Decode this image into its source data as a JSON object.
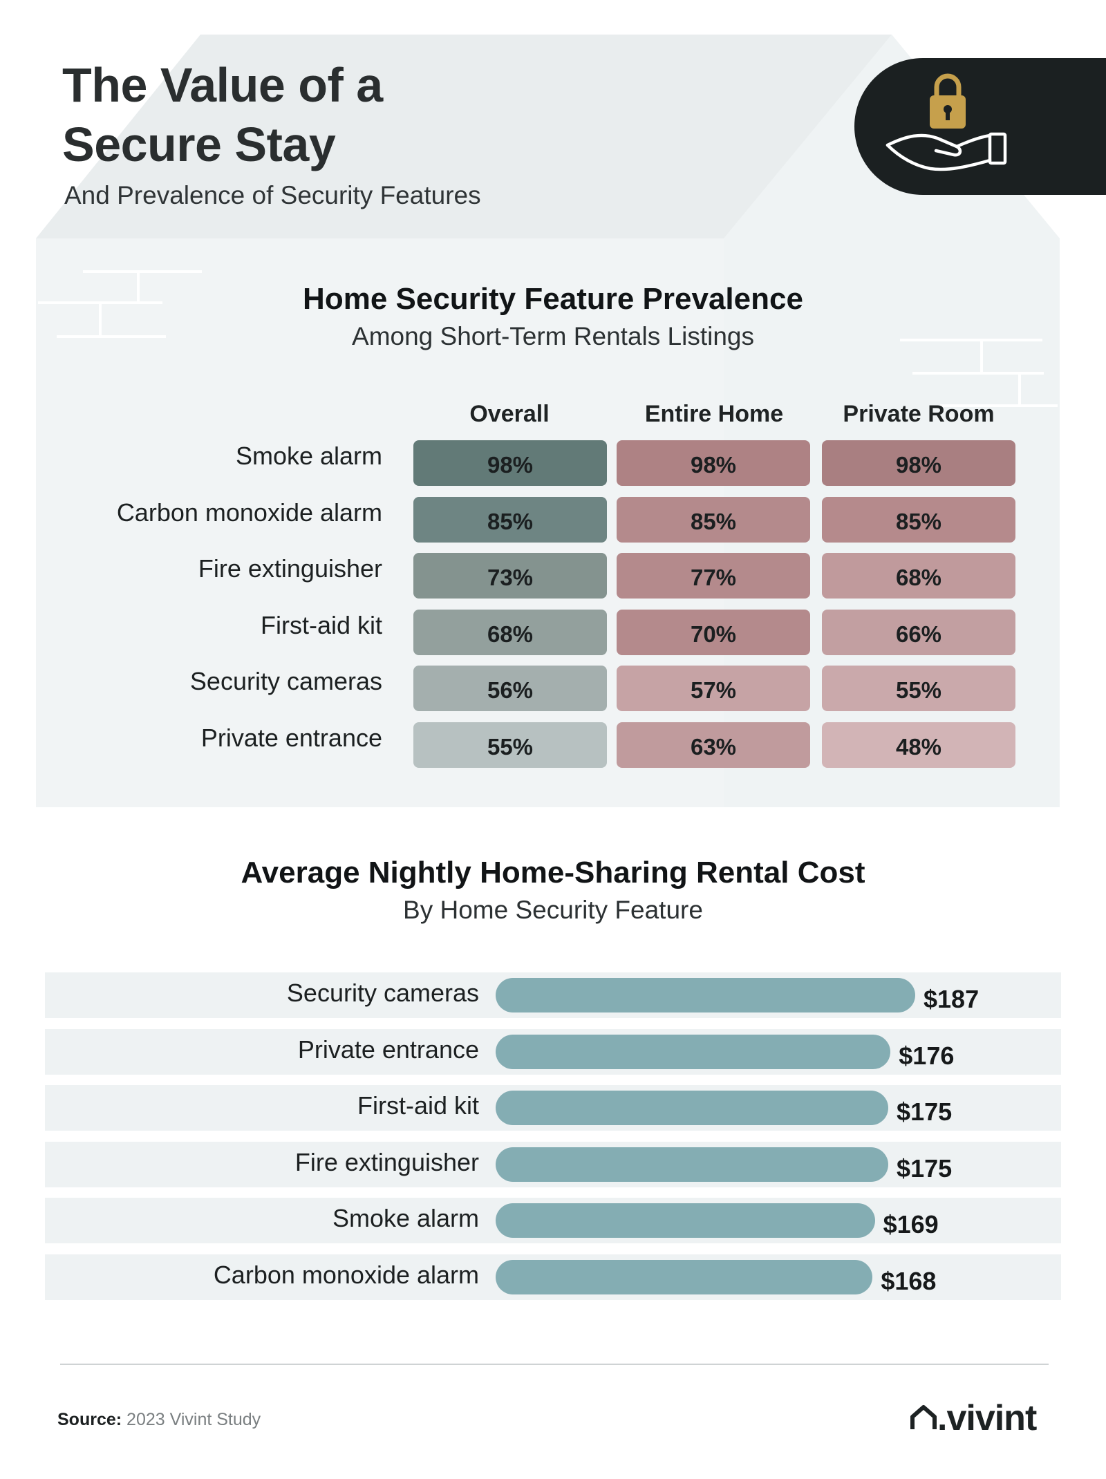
{
  "header": {
    "title": "The Value of a Secure Stay",
    "subtitle": "And Prevalence of Security Features"
  },
  "icons": {
    "lock": "padlock-icon",
    "hand": "open-hand-icon",
    "logo_mark": "house-roof-icon"
  },
  "colors": {
    "overall_scale": [
      "#627a77",
      "#6e8583",
      "#84938f",
      "#93a09d",
      "#a4afae",
      "#b7c1c1"
    ],
    "entire_home_scale": [
      "#ae8284",
      "#b48a8c",
      "#b48a8c",
      "#b48a8c",
      "#c6a3a5",
      "#c09b9d"
    ],
    "private_room_scale": [
      "#a97f81",
      "#b58a8c",
      "#c09a9c",
      "#c29fa1",
      "#caa9ab",
      "#d2b4b6"
    ],
    "bar": "#84adb3",
    "row_bg": "#eef2f3",
    "badge": "#1b2021",
    "lock_gold": "#c6a04c"
  },
  "chart_data": [
    {
      "type": "table",
      "title": "Home Security Feature Prevalence",
      "subtitle": "Among Short-Term Rentals Listings",
      "columns": [
        "Overall",
        "Entire Home",
        "Private Room"
      ],
      "rows": [
        {
          "label": "Smoke alarm",
          "values": [
            "98%",
            "98%",
            "98%"
          ]
        },
        {
          "label": "Carbon monoxide alarm",
          "values": [
            "85%",
            "85%",
            "85%"
          ]
        },
        {
          "label": "Fire extinguisher",
          "values": [
            "73%",
            "77%",
            "68%"
          ]
        },
        {
          "label": "First-aid kit",
          "values": [
            "68%",
            "70%",
            "66%"
          ]
        },
        {
          "label": "Security cameras",
          "values": [
            "56%",
            "57%",
            "55%"
          ]
        },
        {
          "label": "Private entrance",
          "values": [
            "55%",
            "63%",
            "48%"
          ]
        }
      ]
    },
    {
      "type": "bar",
      "orientation": "horizontal",
      "title": "Average Nightly Home-Sharing Rental Cost",
      "subtitle": "By Home Security Feature",
      "categories": [
        "Security cameras",
        "Private entrance",
        "First-aid kit",
        "Fire extinguisher",
        "Smoke alarm",
        "Carbon monoxide alarm"
      ],
      "values": [
        187,
        176,
        175,
        175,
        169,
        168
      ],
      "value_labels": [
        "$187",
        "$176",
        "$175",
        "$175",
        "$169",
        "$168"
      ],
      "xlim": [
        0,
        187
      ]
    }
  ],
  "footer": {
    "source_label": "Source:",
    "source_text": "2023 Vivint Study",
    "logo_text": ".vivint"
  }
}
